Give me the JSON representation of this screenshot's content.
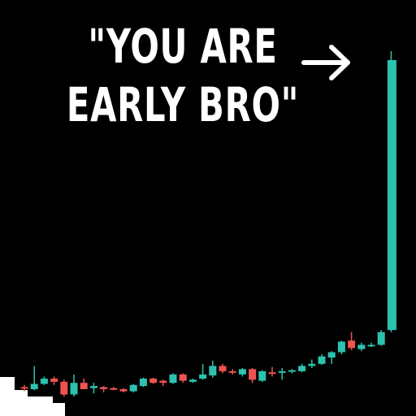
{
  "meme": {
    "caption_line1": "\"YOU ARE",
    "caption_line2": "EARLY BRO\"",
    "arrow_icon": "right-arrow-icon"
  },
  "colors": {
    "background": "#000000",
    "text": "#ffffff",
    "up": "#2cc2b0",
    "down": "#ef5350",
    "blocks": "#ffffff"
  },
  "chart_data": {
    "type": "candlestick",
    "title": "",
    "xlabel": "",
    "ylabel": "",
    "ylim": [
      0,
      100
    ],
    "grid": false,
    "candles": [
      {
        "o": 12,
        "h": 14,
        "l": 8,
        "c": 11
      },
      {
        "o": 10,
        "h": 32,
        "l": 9,
        "c": 15
      },
      {
        "o": 15,
        "h": 22,
        "l": 14,
        "c": 20
      },
      {
        "o": 20,
        "h": 22,
        "l": 14,
        "c": 17
      },
      {
        "o": 17,
        "h": 19,
        "l": 3,
        "c": 5
      },
      {
        "o": 5,
        "h": 24,
        "l": 3,
        "c": 16
      },
      {
        "o": 16,
        "h": 20,
        "l": 10,
        "c": 10
      },
      {
        "o": 11,
        "h": 16,
        "l": 6,
        "c": 13
      },
      {
        "o": 12,
        "h": 13,
        "l": 7,
        "c": 10
      },
      {
        "o": 11,
        "h": 12,
        "l": 9,
        "c": 10
      },
      {
        "o": 10,
        "h": 11,
        "l": 7,
        "c": 8
      },
      {
        "o": 8,
        "h": 15,
        "l": 7,
        "c": 14
      },
      {
        "o": 13,
        "h": 21,
        "l": 12,
        "c": 20
      },
      {
        "o": 20,
        "h": 21,
        "l": 15,
        "c": 16
      },
      {
        "o": 18,
        "h": 19,
        "l": 13,
        "c": 16
      },
      {
        "o": 16,
        "h": 25,
        "l": 15,
        "c": 24
      },
      {
        "o": 24,
        "h": 25,
        "l": 16,
        "c": 18
      },
      {
        "o": 17,
        "h": 20,
        "l": 16,
        "c": 19
      },
      {
        "o": 20,
        "h": 34,
        "l": 19,
        "c": 24
      },
      {
        "o": 23,
        "h": 37,
        "l": 21,
        "c": 32
      },
      {
        "o": 32,
        "h": 34,
        "l": 25,
        "c": 27
      },
      {
        "o": 27,
        "h": 29,
        "l": 24,
        "c": 26
      },
      {
        "o": 24,
        "h": 30,
        "l": 22,
        "c": 29
      },
      {
        "o": 29,
        "h": 30,
        "l": 16,
        "c": 19
      },
      {
        "o": 18,
        "h": 28,
        "l": 17,
        "c": 27
      },
      {
        "o": 26,
        "h": 31,
        "l": 22,
        "c": 25
      },
      {
        "o": 26,
        "h": 30,
        "l": 19,
        "c": 27
      },
      {
        "o": 27,
        "h": 29,
        "l": 25,
        "c": 28
      },
      {
        "o": 27,
        "h": 34,
        "l": 26,
        "c": 32
      },
      {
        "o": 32,
        "h": 38,
        "l": 30,
        "c": 34
      },
      {
        "o": 34,
        "h": 43,
        "l": 33,
        "c": 41
      },
      {
        "o": 40,
        "h": 46,
        "l": 34,
        "c": 45
      },
      {
        "o": 45,
        "h": 56,
        "l": 43,
        "c": 55
      },
      {
        "o": 56,
        "h": 64,
        "l": 47,
        "c": 49
      },
      {
        "o": 48,
        "h": 54,
        "l": 46,
        "c": 52
      },
      {
        "o": 52,
        "h": 54,
        "l": 50,
        "c": 52
      },
      {
        "o": 52,
        "h": 66,
        "l": 51,
        "c": 64
      },
      {
        "o": 66,
        "h": 330,
        "l": 64,
        "c": 330
      }
    ]
  }
}
